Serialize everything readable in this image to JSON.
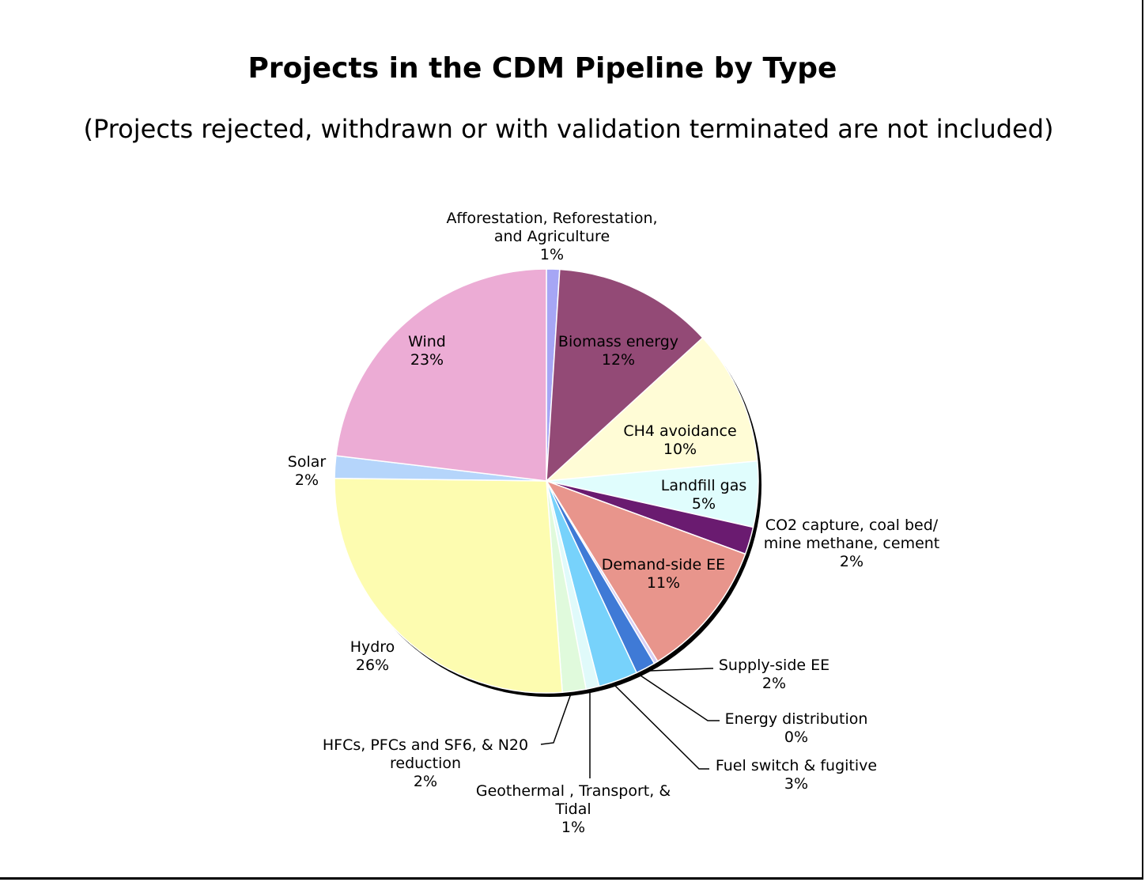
{
  "chart_data": {
    "type": "pie",
    "title": "Projects in the CDM Pipeline by Type",
    "subtitle": "(Projects rejected, withdrawn or with validation terminated are not included)",
    "slices": [
      {
        "label": [
          "Afforestation, Reforestation,",
          "and Agriculture"
        ],
        "pct_text": "1%",
        "value": 1.0,
        "color": "#a6a6f5"
      },
      {
        "label": [
          "Biomass energy"
        ],
        "pct_text": "12%",
        "value": 12.2,
        "color": "#934a76"
      },
      {
        "label": [
          "CH4 avoidance"
        ],
        "pct_text": "10%",
        "value": 10.3,
        "color": "#fffcd6"
      },
      {
        "label": [
          "Landfill gas"
        ],
        "pct_text": "5%",
        "value": 5.0,
        "color": "#e0fdfd"
      },
      {
        "label": [
          "CO2 capture, coal bed/",
          "mine methane, cement"
        ],
        "pct_text": "2%",
        "value": 2.1,
        "color": "#6a1b70"
      },
      {
        "label": [
          "Demand-side EE"
        ],
        "pct_text": "11%",
        "value": 10.6,
        "color": "#e8958c"
      },
      {
        "label": [
          "Energy distribution"
        ],
        "pct_text": "0%",
        "value": 0.3,
        "color": "#d8d0f5"
      },
      {
        "label": [
          "Supply-side EE"
        ],
        "pct_text": "2%",
        "value": 1.5,
        "color": "#3f7ad6"
      },
      {
        "label": [
          "Fuel switch & fugitive"
        ],
        "pct_text": "3%",
        "value": 3.0,
        "color": "#77d2fb"
      },
      {
        "label": [
          "Geothermal , Transport, &",
          "Tidal"
        ],
        "pct_text": "1%",
        "value": 1.0,
        "color": "#e0fafa"
      },
      {
        "label": [
          "HFCs, PFCs and SF6, & N20",
          "reduction"
        ],
        "pct_text": "2%",
        "value": 1.8,
        "color": "#e0fadc"
      },
      {
        "label": [
          "Hydro"
        ],
        "pct_text": "26%",
        "value": 26.4,
        "color": "#fdfcb0"
      },
      {
        "label": [
          "Solar"
        ],
        "pct_text": "2%",
        "value": 1.7,
        "color": "#b5d5fb"
      },
      {
        "label": [
          "Wind"
        ],
        "pct_text": "23%",
        "value": 23.1,
        "color": "#ecacd5"
      }
    ]
  }
}
